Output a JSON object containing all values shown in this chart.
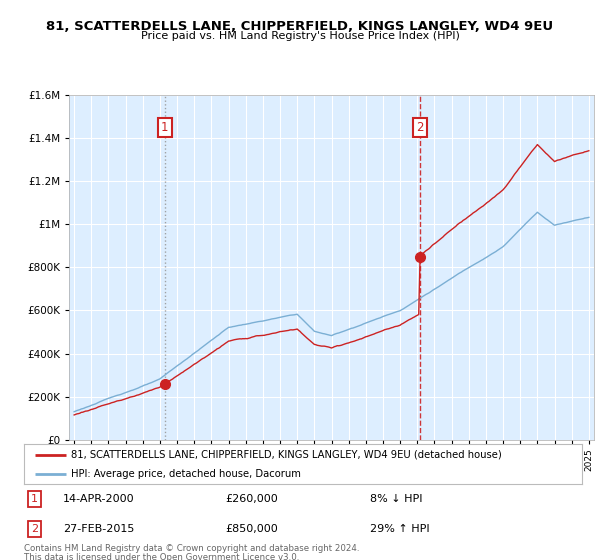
{
  "title": "81, SCATTERDELLS LANE, CHIPPERFIELD, KINGS LANGLEY, WD4 9EU",
  "subtitle": "Price paid vs. HM Land Registry's House Price Index (HPI)",
  "sale1_year": 2000.29,
  "sale1_price": 260000,
  "sale2_year": 2015.16,
  "sale2_price": 850000,
  "legend_line1": "81, SCATTERDELLS LANE, CHIPPERFIELD, KINGS LANGLEY, WD4 9EU (detached house)",
  "legend_line2": "HPI: Average price, detached house, Dacorum",
  "footer_line1": "Contains HM Land Registry data © Crown copyright and database right 2024.",
  "footer_line2": "This data is licensed under the Open Government Licence v3.0.",
  "hpi_color": "#7bafd4",
  "price_color": "#cc2222",
  "sale1_vline_color": "#aaaaaa",
  "sale2_vline_color": "#cc2222",
  "chart_bg_color": "#ddeeff",
  "background_color": "#ffffff",
  "grid_color": "#ffffff",
  "ylim": [
    0,
    1600000
  ],
  "yticks": [
    0,
    200000,
    400000,
    600000,
    800000,
    1000000,
    1200000,
    1400000,
    1600000
  ],
  "xlim_start": 1994.7,
  "xlim_end": 2025.3
}
